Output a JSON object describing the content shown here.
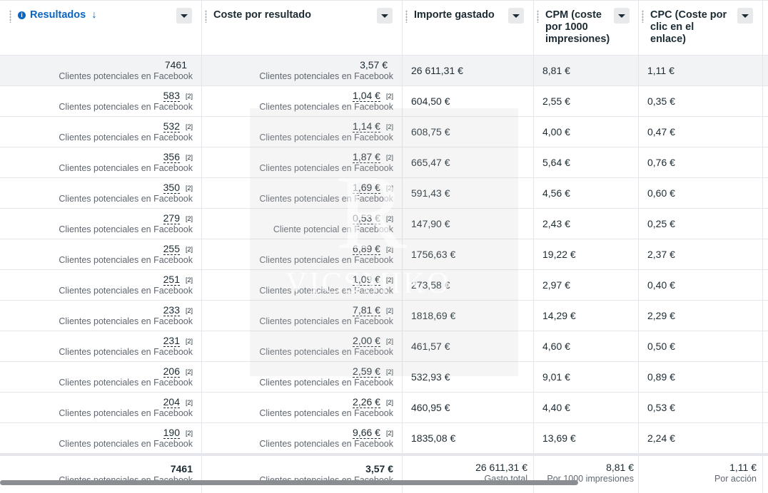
{
  "columns": [
    {
      "label": "Resultados",
      "sort_arrow": "↓",
      "info_icon": "i"
    },
    {
      "label": "Coste por resultado"
    },
    {
      "label": "Importe gastado"
    },
    {
      "label": "CPM (coste por 1000 impresiones)"
    },
    {
      "label": "CPC (Coste por clic en el enlace)"
    }
  ],
  "rows": [
    {
      "results": "7461",
      "results_tag": "",
      "results_sub": "Clientes potenciales en Facebook",
      "cost": "3,57 €",
      "cost_tag": "",
      "cost_sub": "Clientes potenciales en Facebook",
      "spent": "26 611,31 €",
      "cpm": "8,81 €",
      "cpc": "1,11 €"
    },
    {
      "results": "583",
      "results_tag": "[2]",
      "results_sub": "Clientes potenciales en Facebook",
      "cost": "1,04 €",
      "cost_tag": "[2]",
      "cost_sub": "Clientes potenciales en Facebook",
      "spent": "604,50 €",
      "cpm": "2,55 €",
      "cpc": "0,35 €"
    },
    {
      "results": "532",
      "results_tag": "[2]",
      "results_sub": "Clientes potenciales en Facebook",
      "cost": "1,14 €",
      "cost_tag": "[2]",
      "cost_sub": "Clientes potenciales en Facebook",
      "spent": "608,75 €",
      "cpm": "4,00 €",
      "cpc": "0,47 €"
    },
    {
      "results": "356",
      "results_tag": "[2]",
      "results_sub": "Clientes potenciales en Facebook",
      "cost": "1,87 €",
      "cost_tag": "[2]",
      "cost_sub": "Clientes potenciales en Facebook",
      "spent": "665,47 €",
      "cpm": "5,64 €",
      "cpc": "0,76 €"
    },
    {
      "results": "350",
      "results_tag": "[2]",
      "results_sub": "Clientes potenciales en Facebook",
      "cost": "1,69 €",
      "cost_tag": "[2]",
      "cost_sub": "Clientes potenciales en Facebook",
      "spent": "591,43 €",
      "cpm": "4,56 €",
      "cpc": "0,60 €"
    },
    {
      "results": "279",
      "results_tag": "[2]",
      "results_sub": "Clientes potenciales en Facebook",
      "cost": "0,53 €",
      "cost_tag": "[2]",
      "cost_sub": "Cliente potencial en Facebook",
      "spent": "147,90 €",
      "cpm": "2,43 €",
      "cpc": "0,25 €"
    },
    {
      "results": "255",
      "results_tag": "[2]",
      "results_sub": "Clientes potenciales en Facebook",
      "cost": "6,89 €",
      "cost_tag": "[2]",
      "cost_sub": "Clientes potenciales en Facebook",
      "spent": "1756,63 €",
      "cpm": "19,22 €",
      "cpc": "2,37 €"
    },
    {
      "results": "251",
      "results_tag": "[2]",
      "results_sub": "Clientes potenciales en Facebook",
      "cost": "1,09 €",
      "cost_tag": "[2]",
      "cost_sub": "Clientes potenciales en Facebook",
      "spent": "273,58 €",
      "cpm": "2,97 €",
      "cpc": "0,40 €"
    },
    {
      "results": "233",
      "results_tag": "[2]",
      "results_sub": "Clientes potenciales en Facebook",
      "cost": "7,81 €",
      "cost_tag": "[2]",
      "cost_sub": "Clientes potenciales en Facebook",
      "spent": "1818,69 €",
      "cpm": "14,29 €",
      "cpc": "2,29 €"
    },
    {
      "results": "231",
      "results_tag": "[2]",
      "results_sub": "Clientes potenciales en Facebook",
      "cost": "2,00 €",
      "cost_tag": "[2]",
      "cost_sub": "Clientes potenciales en Facebook",
      "spent": "461,57 €",
      "cpm": "4,60 €",
      "cpc": "0,50 €"
    },
    {
      "results": "206",
      "results_tag": "[2]",
      "results_sub": "Clientes potenciales en Facebook",
      "cost": "2,59 €",
      "cost_tag": "[2]",
      "cost_sub": "Clientes potenciales en Facebook",
      "spent": "532,93 €",
      "cpm": "9,01 €",
      "cpc": "0,89 €"
    },
    {
      "results": "204",
      "results_tag": "[2]",
      "results_sub": "Clientes potenciales en Facebook",
      "cost": "2,26 €",
      "cost_tag": "[2]",
      "cost_sub": "Clientes potenciales en Facebook",
      "spent": "460,95 €",
      "cpm": "4,40 €",
      "cpc": "0,53 €"
    },
    {
      "results": "190",
      "results_tag": "[2]",
      "results_sub": "Clientes potenciales en Facebook",
      "cost": "9,66 €",
      "cost_tag": "[2]",
      "cost_sub": "Clientes potenciales en Facebook",
      "spent": "1835,08 €",
      "cpm": "13,69 €",
      "cpc": "2,24 €"
    }
  ],
  "totals": {
    "results": "7461",
    "results_sub": "Clientes potenciales en Facebook",
    "cost": "3,57 €",
    "cost_sub": "Clientes potenciales en Facebook",
    "spent": "26 611,31 €",
    "spent_sub": "Gasto total",
    "cpm": "8,81 €",
    "cpm_sub": "Por 1000 impresiones",
    "cpc": "1,11 €",
    "cpc_sub": "Por acción"
  },
  "watermark": {
    "letter": "R",
    "text": "VICSMIKO"
  },
  "colors": {
    "accent": "#0a66c2",
    "first_row_bg": "#f2f3f5",
    "border": "#e4e6eb"
  }
}
